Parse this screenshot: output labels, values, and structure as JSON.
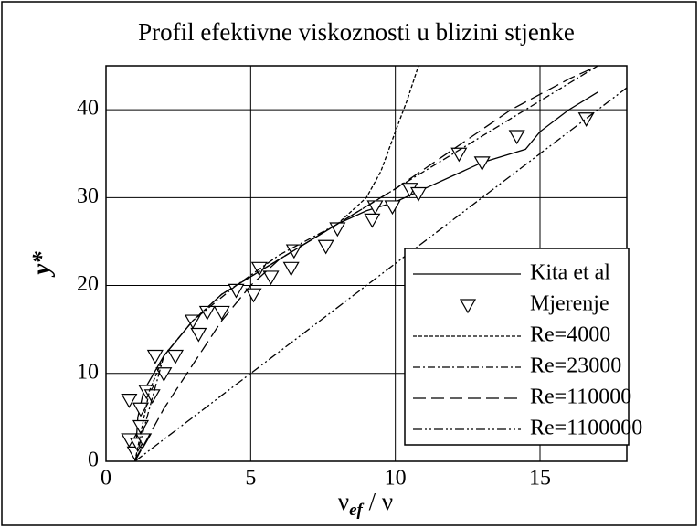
{
  "chart_data": {
    "type": "line",
    "title": "Profil efektivne viskoznosti u blizini stjenke",
    "x_label": [
      "ν",
      "ef",
      " / ν"
    ],
    "y_label": "y*",
    "xlim": [
      0,
      18
    ],
    "xticks": [
      0,
      5,
      10,
      15
    ],
    "ylim": [
      0,
      45
    ],
    "yticks": [
      0,
      10,
      20,
      30,
      40
    ],
    "grid": true,
    "legend": "lower right",
    "series": [
      {
        "name": "Kita et al",
        "type": "line",
        "color": "#000000",
        "dash": "none",
        "x": [
          1,
          1.1,
          1.3,
          2,
          3,
          4,
          5,
          6,
          7,
          8,
          9,
          10,
          11,
          12,
          13,
          14,
          14.5,
          15,
          16,
          17
        ],
        "values": [
          0,
          5,
          8,
          12,
          16,
          19,
          21,
          23,
          25,
          27,
          28.5,
          29.5,
          31,
          32.5,
          34,
          35,
          35.5,
          37.5,
          40,
          42
        ]
      },
      {
        "name": "Mjerenje",
        "type": "scatter",
        "color": "#000000",
        "x": [
          0.8,
          0.8,
          1,
          1.1,
          1.2,
          1.2,
          1.3,
          1.4,
          1.6,
          1.7,
          2,
          2.4,
          3,
          3.2,
          3.5,
          4,
          4.5,
          5.1,
          5.3,
          5.7,
          6.4,
          6.5,
          7.6,
          8,
          9.2,
          9.3,
          9.9,
          10.5,
          10.8,
          12.2,
          13,
          14.2,
          16.6
        ],
        "values": [
          2.5,
          7,
          1,
          2,
          4,
          6,
          2.5,
          8,
          7.5,
          12,
          10,
          12,
          16,
          14.5,
          17,
          17,
          19.5,
          19,
          22,
          21,
          22,
          24,
          24.5,
          26.5,
          27.5,
          29,
          29,
          31,
          30.5,
          35,
          34,
          37,
          39
        ]
      },
      {
        "name": "Re=4000",
        "type": "line",
        "color": "#000000",
        "dash": "4,2",
        "x": [
          1,
          1.5,
          2,
          3,
          4,
          5,
          6,
          7,
          8,
          9,
          9.5,
          10,
          10.4,
          10.8
        ],
        "values": [
          0,
          8,
          12,
          16,
          19,
          21,
          23,
          25,
          27,
          30,
          33,
          37.5,
          41,
          45
        ]
      },
      {
        "name": "Re=23000",
        "type": "line",
        "color": "#000000",
        "dash": "8,3,2,3",
        "x": [
          1,
          2,
          3,
          4.5,
          6,
          8,
          10,
          12,
          14,
          16,
          17
        ],
        "values": [
          0,
          12,
          16,
          20,
          23.5,
          27,
          31,
          35,
          39,
          43,
          45
        ]
      },
      {
        "name": "Re=110000",
        "type": "line",
        "color": "#000000",
        "dash": "14,6",
        "x": [
          1,
          2,
          3,
          4,
          5,
          6,
          8,
          10,
          12,
          14,
          16,
          17
        ],
        "values": [
          0,
          6,
          11,
          16,
          20,
          23,
          27,
          31,
          35.5,
          40,
          43.5,
          45
        ]
      },
      {
        "name": "Re=1100000",
        "type": "line",
        "color": "#000000",
        "dash": "10,3,2,3,2,3",
        "x": [
          1,
          18
        ],
        "values": [
          0,
          42.5
        ]
      }
    ]
  }
}
